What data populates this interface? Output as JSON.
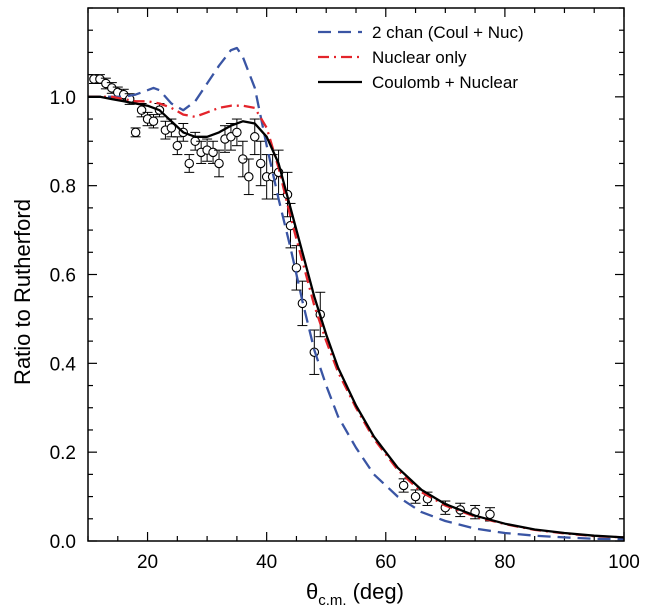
{
  "chart_data": {
    "type": "line",
    "xlabel_symbol": "θ",
    "xlabel_subscript": "c.m.",
    "xlabel_unit": "(deg)",
    "ylabel": "Ratio to Rutherford",
    "xlim": [
      10,
      100
    ],
    "ylim": [
      0.0,
      1.2
    ],
    "x_ticks": [
      20,
      40,
      60,
      80,
      100
    ],
    "y_ticks": [
      0.0,
      0.2,
      0.4,
      0.6,
      0.8,
      1.0
    ],
    "y_tick_labels": [
      "0.0",
      "0.2",
      "0.4",
      "0.6",
      "0.8",
      "1.0"
    ],
    "x_minor_step": 5,
    "y_minor_step": 0.05,
    "legend_position": "top-right",
    "grid": false,
    "series": [
      {
        "name": "2 chan (Coul + Nuc)",
        "color": "#3a55a4",
        "dash": "dashed",
        "x": [
          10,
          12,
          14,
          16,
          18,
          20,
          21,
          22,
          24,
          26,
          28,
          30,
          32,
          34,
          35,
          36,
          38,
          40,
          42,
          44,
          46,
          48,
          50,
          52,
          55,
          58,
          62,
          66,
          70,
          75,
          80,
          85,
          90,
          95,
          100
        ],
        "y": [
          1.0,
          1.0,
          1.0,
          1.0,
          1.005,
          1.015,
          1.02,
          1.015,
          0.985,
          0.97,
          0.99,
          1.03,
          1.07,
          1.105,
          1.11,
          1.09,
          1.02,
          0.89,
          0.77,
          0.66,
          0.54,
          0.43,
          0.35,
          0.28,
          0.21,
          0.15,
          0.1,
          0.065,
          0.045,
          0.028,
          0.018,
          0.012,
          0.008,
          0.005,
          0.004
        ]
      },
      {
        "name": "Nuclear only",
        "color": "#e3242b",
        "dash": "dashdot",
        "x": [
          10,
          12,
          14,
          16,
          18,
          20,
          22,
          24,
          26,
          28,
          30,
          32,
          34,
          35,
          36,
          38,
          40,
          42,
          44,
          46,
          48,
          50,
          52,
          55,
          58,
          62,
          66,
          70,
          75,
          80,
          85,
          90,
          95,
          100
        ],
        "y": [
          1.0,
          1.0,
          1.0,
          0.995,
          0.99,
          0.99,
          0.985,
          0.975,
          0.96,
          0.955,
          0.965,
          0.975,
          0.98,
          0.98,
          0.98,
          0.975,
          0.93,
          0.84,
          0.73,
          0.63,
          0.53,
          0.45,
          0.38,
          0.3,
          0.23,
          0.16,
          0.11,
          0.08,
          0.055,
          0.038,
          0.025,
          0.017,
          0.011,
          0.008
        ]
      },
      {
        "name": "Coulomb + Nuclear",
        "color": "#000000",
        "dash": "solid",
        "x": [
          10,
          12,
          14,
          16,
          18,
          20,
          22,
          24,
          26,
          28,
          30,
          32,
          34,
          36,
          38,
          40,
          42,
          44,
          46,
          48,
          50,
          52,
          55,
          58,
          62,
          66,
          70,
          75,
          80,
          85,
          90,
          95,
          100
        ],
        "y": [
          1.0,
          1.0,
          0.995,
          0.99,
          0.985,
          0.98,
          0.97,
          0.945,
          0.92,
          0.91,
          0.91,
          0.92,
          0.935,
          0.945,
          0.94,
          0.91,
          0.85,
          0.75,
          0.65,
          0.55,
          0.465,
          0.39,
          0.305,
          0.235,
          0.165,
          0.115,
          0.083,
          0.057,
          0.039,
          0.026,
          0.018,
          0.012,
          0.008
        ]
      }
    ],
    "data_points": {
      "marker": "open-circle",
      "x": [
        11,
        12,
        13,
        14,
        15,
        16,
        17,
        18,
        19,
        20,
        21,
        22,
        23,
        24,
        25,
        26,
        27,
        28,
        29,
        30,
        31,
        32,
        33,
        34,
        35,
        36,
        37,
        38,
        39,
        40,
        41,
        42,
        43.5,
        44,
        45,
        46,
        48,
        49,
        63,
        65,
        67,
        70,
        72.5,
        75,
        77.5
      ],
      "y": [
        1.04,
        1.04,
        1.03,
        1.02,
        1.01,
        1.005,
        0.995,
        0.92,
        0.97,
        0.95,
        0.945,
        0.97,
        0.925,
        0.93,
        0.89,
        0.92,
        0.85,
        0.9,
        0.875,
        0.88,
        0.875,
        0.85,
        0.905,
        0.91,
        0.92,
        0.86,
        0.82,
        0.91,
        0.85,
        0.82,
        0.82,
        0.83,
        0.78,
        0.71,
        0.615,
        0.535,
        0.425,
        0.51,
        0.125,
        0.1,
        0.095,
        0.075,
        0.07,
        0.065,
        0.06
      ],
      "err": [
        0.01,
        0.01,
        0.012,
        0.012,
        0.012,
        0.012,
        0.012,
        0.01,
        0.015,
        0.015,
        0.015,
        0.015,
        0.02,
        0.02,
        0.02,
        0.02,
        0.02,
        0.02,
        0.025,
        0.025,
        0.025,
        0.03,
        0.03,
        0.03,
        0.03,
        0.04,
        0.04,
        0.04,
        0.05,
        0.05,
        0.05,
        0.05,
        0.05,
        0.05,
        0.05,
        0.05,
        0.05,
        0.05,
        0.015,
        0.015,
        0.015,
        0.015,
        0.015,
        0.015,
        0.015
      ]
    }
  }
}
